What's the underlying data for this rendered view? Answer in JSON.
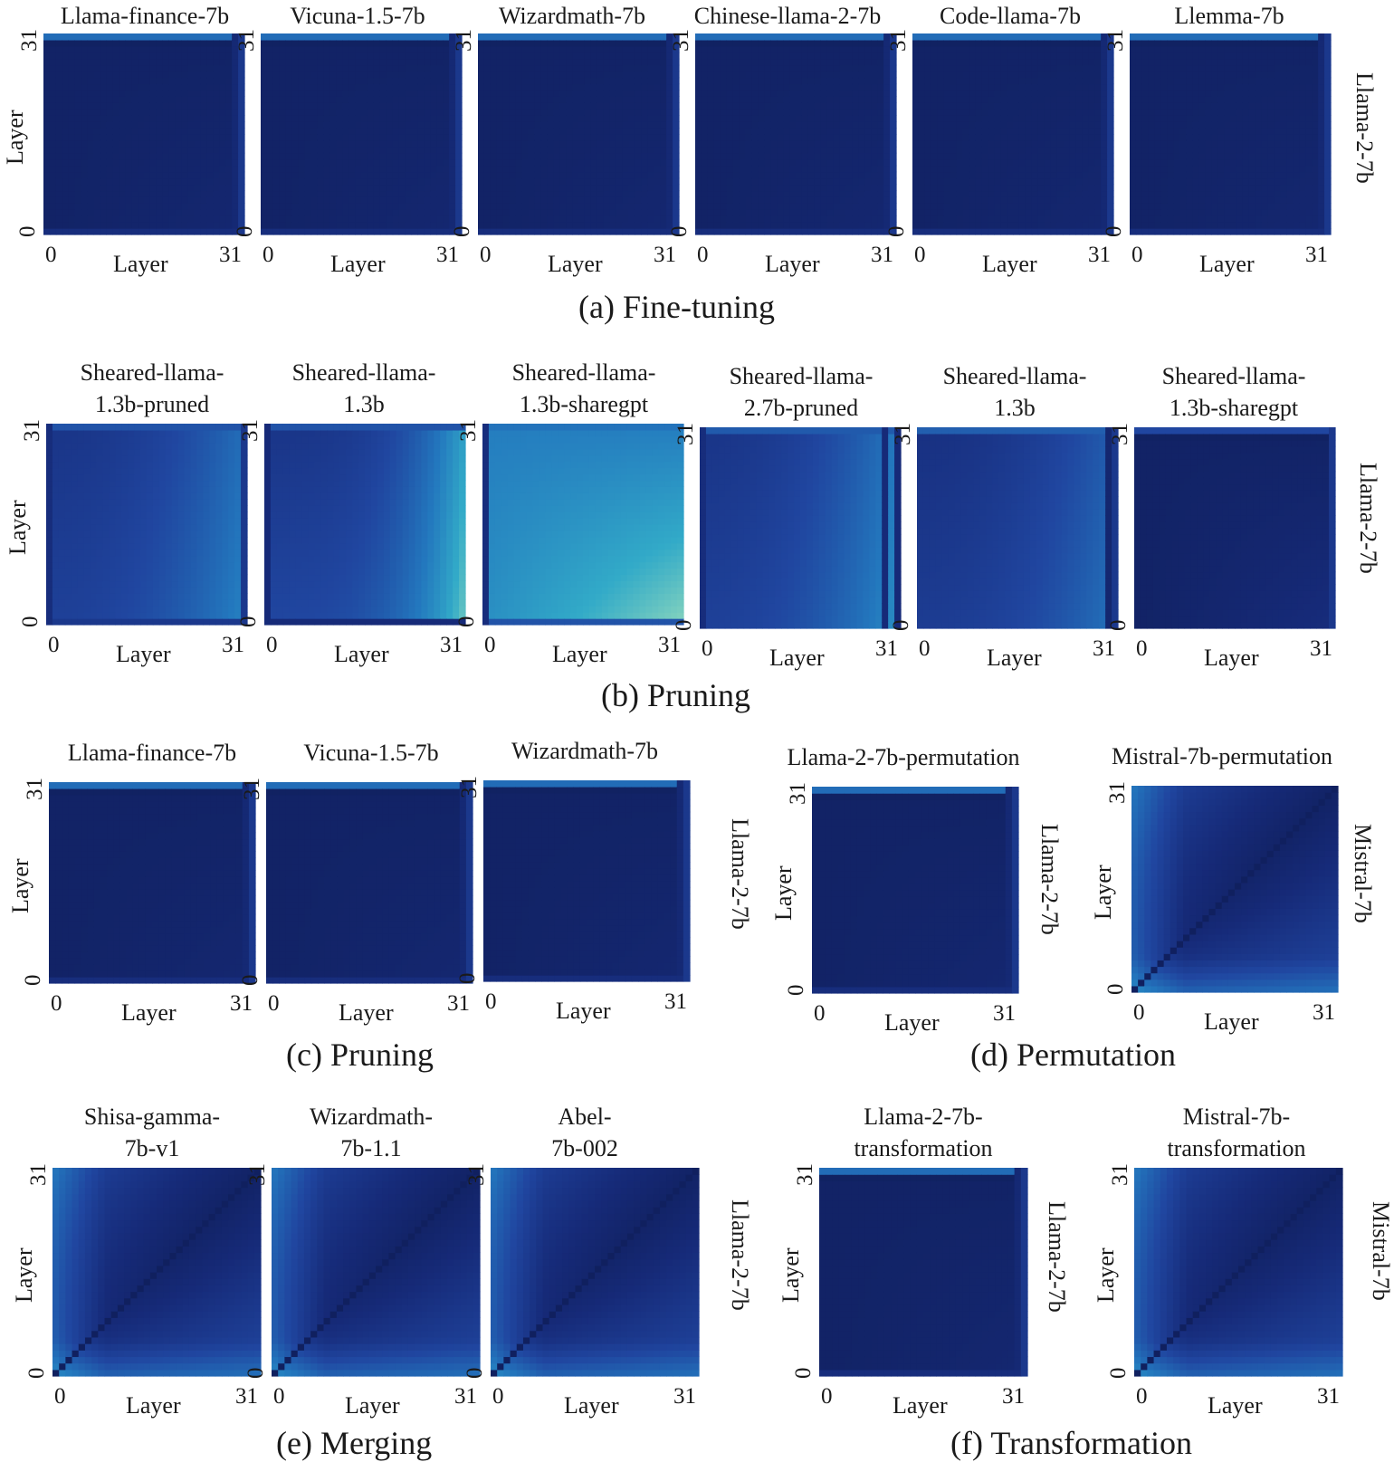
{
  "chart_data": [
    {
      "type": "heatmap",
      "caption": "(a) Fine-tuning",
      "panels": [
        {
          "title": [
            "Llama-finance-7b"
          ],
          "row_label": "Llama-2-7b",
          "style": "ft"
        },
        {
          "title": [
            "Vicuna-1.5-7b"
          ],
          "row_label": "Llama-2-7b",
          "style": "ft"
        },
        {
          "title": [
            "Wizardmath-7b"
          ],
          "row_label": "Llama-2-7b",
          "style": "ft"
        },
        {
          "title": [
            "Chinese-llama-2-7b"
          ],
          "row_label": "Llama-2-7b",
          "style": "ft"
        },
        {
          "title": [
            "Code-llama-7b"
          ],
          "row_label": "Llama-2-7b",
          "style": "ft"
        },
        {
          "title": [
            "Llemma-7b"
          ],
          "row_label": "Llama-2-7b",
          "style": "ft"
        }
      ],
      "xlabel": "Layer",
      "ylabel": "Layer",
      "x_ticks": [
        "0",
        "31"
      ],
      "y_ticks": [
        "0",
        "31"
      ],
      "x_range": [
        0,
        31
      ],
      "y_range": [
        0,
        31
      ]
    },
    {
      "type": "heatmap",
      "caption": "(b) Pruning",
      "panels": [
        {
          "title": [
            "Sheared-llama-",
            "1.3b-pruned"
          ],
          "row_label": "Llama-2-7b",
          "style": "pr1"
        },
        {
          "title": [
            "Sheared-llama-",
            "1.3b"
          ],
          "row_label": "Llama-2-7b",
          "style": "pr2"
        },
        {
          "title": [
            "Sheared-llama-",
            "1.3b-sharegpt"
          ],
          "row_label": "Llama-2-7b",
          "style": "pr3"
        },
        {
          "title": [
            "Sheared-llama-",
            "2.7b-pruned"
          ],
          "row_label": "Llama-2-7b",
          "style": "pr4"
        },
        {
          "title": [
            "Sheared-llama-",
            "1.3b"
          ],
          "row_label": "Llama-2-7b",
          "style": "pr5"
        },
        {
          "title": [
            "Sheared-llama-",
            "1.3b-sharegpt"
          ],
          "row_label": "Llama-2-7b",
          "style": "pr6"
        }
      ],
      "xlabel": "Layer",
      "ylabel": "Layer",
      "x_ticks": [
        "0",
        "31"
      ],
      "y_ticks": [
        "0",
        "31"
      ],
      "x_range": [
        0,
        31
      ],
      "y_range": [
        0,
        31
      ]
    },
    {
      "type": "heatmap",
      "caption": "(c) Pruning",
      "panels": [
        {
          "title": [
            "Llama-finance-7b"
          ],
          "row_label": "Llama-2-7b",
          "style": "ft"
        },
        {
          "title": [
            "Vicuna-1.5-7b"
          ],
          "row_label": "Llama-2-7b",
          "style": "ft"
        },
        {
          "title": [
            "Wizardmath-7b"
          ],
          "row_label": "Llama-2-7b",
          "style": "ft"
        }
      ],
      "xlabel": "Layer",
      "ylabel": "Layer",
      "x_ticks": [
        "0",
        "31"
      ],
      "y_ticks": [
        "0",
        "31"
      ],
      "x_range": [
        0,
        31
      ],
      "y_range": [
        0,
        31
      ]
    },
    {
      "type": "heatmap",
      "caption": "(d) Permutation",
      "panels": [
        {
          "title": [
            "Llama-2-7b-permutation"
          ],
          "row_label": "Llama-2-7b",
          "style": "ft"
        },
        {
          "title": [
            "Mistral-7b-permutation"
          ],
          "row_label": "Mistral-7b",
          "style": "diag"
        }
      ],
      "xlabel": "Layer",
      "ylabel": "Layer",
      "x_ticks": [
        "0",
        "31"
      ],
      "y_ticks": [
        "0",
        "31"
      ],
      "x_range": [
        0,
        31
      ],
      "y_range": [
        0,
        31
      ]
    },
    {
      "type": "heatmap",
      "caption": "(e) Merging",
      "panels": [
        {
          "title": [
            "Shisa-gamma-",
            "7b-v1"
          ],
          "row_label": "Llama-2-7b",
          "style": "diag"
        },
        {
          "title": [
            "Wizardmath-",
            "7b-1.1"
          ],
          "row_label": "Llama-2-7b",
          "style": "diag"
        },
        {
          "title": [
            "Abel-",
            "7b-002"
          ],
          "row_label": "Llama-2-7b",
          "style": "diag"
        }
      ],
      "xlabel": "Layer",
      "ylabel": "Layer",
      "x_ticks": [
        "0",
        "31"
      ],
      "y_ticks": [
        "0",
        "31"
      ],
      "x_range": [
        0,
        31
      ],
      "y_range": [
        0,
        31
      ]
    },
    {
      "type": "heatmap",
      "caption": "(f) Transformation",
      "panels": [
        {
          "title": [
            "Llama-2-7b-",
            "transformation"
          ],
          "row_label": "Llama-2-7b",
          "style": "ft"
        },
        {
          "title": [
            "Mistral-7b-",
            "transformation"
          ],
          "row_label": "Mistral-7b",
          "style": "diag"
        }
      ],
      "xlabel": "Layer",
      "ylabel": "Layer",
      "x_ticks": [
        "0",
        "31"
      ],
      "y_ticks": [
        "0",
        "31"
      ],
      "x_range": [
        0,
        31
      ],
      "y_range": [
        0,
        31
      ]
    }
  ]
}
